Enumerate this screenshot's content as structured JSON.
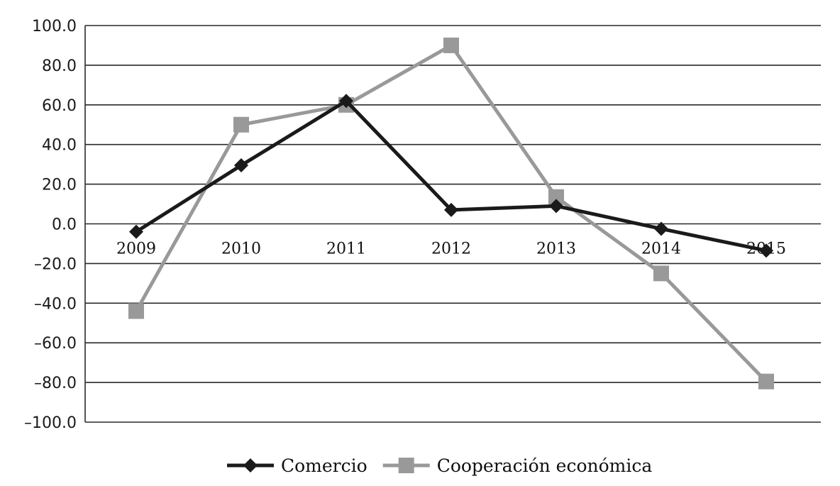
{
  "chart_data": {
    "type": "line",
    "categories": [
      "2009",
      "2010",
      "2011",
      "2012",
      "2013",
      "2014",
      "2015"
    ],
    "series": [
      {
        "name": "Comercio",
        "values": [
          -4.0,
          29.5,
          62.0,
          7.0,
          9.0,
          -2.5,
          -13.5
        ],
        "color": "#1a1a1a",
        "marker": "diamond"
      },
      {
        "name": "Cooperación económica",
        "values": [
          -44.0,
          50.0,
          60.0,
          90.0,
          13.5,
          -25.0,
          -79.5
        ],
        "color": "#999999",
        "marker": "square"
      }
    ],
    "yticks": [
      "100.0",
      "80.0",
      "60.0",
      "40.0",
      "20.0",
      "0.0",
      "-20.0",
      "-40.0",
      "-60.0",
      "-80.0",
      "-100.0"
    ],
    "ylim": [
      -100,
      100
    ],
    "grid": true,
    "legend_position": "bottom",
    "title": "",
    "xlabel": "",
    "ylabel": ""
  }
}
